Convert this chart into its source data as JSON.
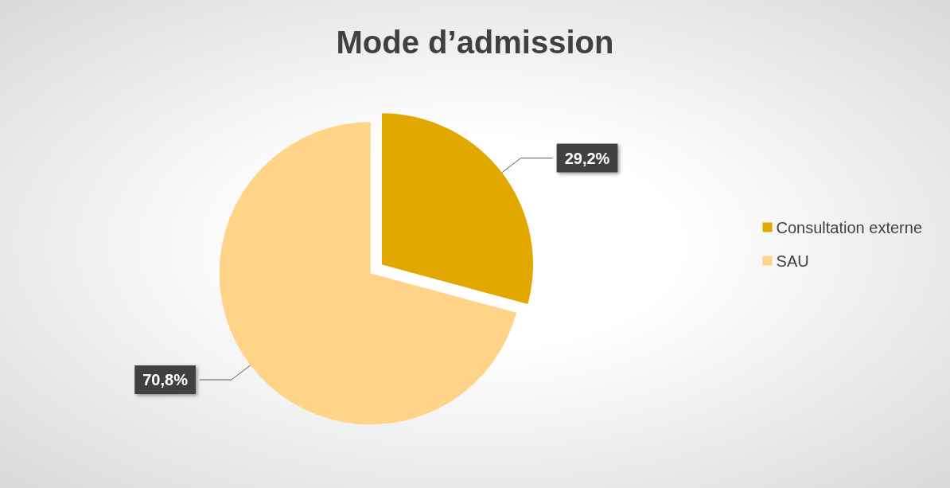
{
  "chart_data": {
    "type": "pie",
    "title": "Mode d’admission",
    "categories": [
      "Consultation externe",
      "SAU"
    ],
    "values": [
      29.2,
      70.8
    ],
    "colors": [
      "#e2a800",
      "#ffd488"
    ],
    "value_labels": [
      "29,2%",
      "70,8%"
    ],
    "legend": "right"
  }
}
